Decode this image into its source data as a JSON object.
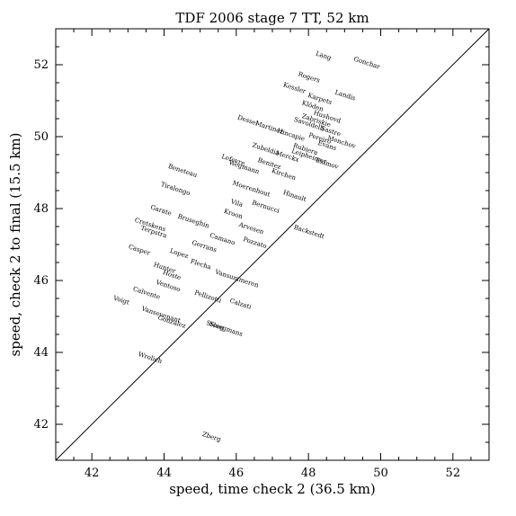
{
  "chart_data": {
    "type": "scatter",
    "title": "TDF 2006 stage 7 TT, 52 km",
    "xlabel": "speed, time check 2 (36.5 km)",
    "ylabel": "speed, check 2 to final (15.5 km)",
    "xlim": [
      41,
      53
    ],
    "ylim": [
      41,
      53
    ],
    "xticks": [
      42,
      44,
      46,
      48,
      50,
      52
    ],
    "yticks": [
      42,
      44,
      46,
      48,
      50,
      52
    ],
    "diagonal": "y = x",
    "points": [
      {
        "label": "Lang",
        "x": 48.4,
        "y": 52.2
      },
      {
        "label": "Gonchar",
        "x": 49.6,
        "y": 52.0
      },
      {
        "label": "Rogers",
        "x": 48.0,
        "y": 51.6
      },
      {
        "label": "Kessler",
        "x": 47.6,
        "y": 51.3
      },
      {
        "label": "Landis",
        "x": 49.0,
        "y": 51.1
      },
      {
        "label": "Karpets",
        "x": 48.3,
        "y": 51.0
      },
      {
        "label": "Klöden",
        "x": 48.1,
        "y": 50.8
      },
      {
        "label": "Hushovd",
        "x": 48.5,
        "y": 50.5
      },
      {
        "label": "Zabriskie",
        "x": 48.2,
        "y": 50.4
      },
      {
        "label": "Savoldelli",
        "x": 48.0,
        "y": 50.3
      },
      {
        "label": "Sastre",
        "x": 48.6,
        "y": 50.1
      },
      {
        "label": "Menchov",
        "x": 48.9,
        "y": 49.8
      },
      {
        "label": "Dessel",
        "x": 46.3,
        "y": 50.4
      },
      {
        "label": "Martinez",
        "x": 46.9,
        "y": 50.2
      },
      {
        "label": "Hincapie",
        "x": 47.5,
        "y": 50.0
      },
      {
        "label": "Pereiro",
        "x": 48.3,
        "y": 49.9
      },
      {
        "label": "Evans",
        "x": 48.5,
        "y": 49.7
      },
      {
        "label": "Rubiera",
        "x": 47.9,
        "y": 49.6
      },
      {
        "label": "Leipheimer",
        "x": 48.0,
        "y": 49.4
      },
      {
        "label": "Eximov",
        "x": 48.5,
        "y": 49.2
      },
      {
        "label": "Zubeldia",
        "x": 46.8,
        "y": 49.6
      },
      {
        "label": "Merckx",
        "x": 47.4,
        "y": 49.4
      },
      {
        "label": "Lefevre",
        "x": 45.9,
        "y": 49.3
      },
      {
        "label": "Wegmann",
        "x": 46.2,
        "y": 49.1
      },
      {
        "label": "Benitez",
        "x": 46.9,
        "y": 49.2
      },
      {
        "label": "Beneteau",
        "x": 44.5,
        "y": 49.0
      },
      {
        "label": "Kirchen",
        "x": 47.3,
        "y": 48.9
      },
      {
        "label": "Moerenhout",
        "x": 46.4,
        "y": 48.5
      },
      {
        "label": "Hinault",
        "x": 47.6,
        "y": 48.3
      },
      {
        "label": "Tiralongo",
        "x": 44.3,
        "y": 48.5
      },
      {
        "label": "Bernucci",
        "x": 46.8,
        "y": 48.0
      },
      {
        "label": "Vila",
        "x": 46.0,
        "y": 48.1
      },
      {
        "label": "Kroon",
        "x": 45.9,
        "y": 47.8
      },
      {
        "label": "Backstedt",
        "x": 48.0,
        "y": 47.3
      },
      {
        "label": "Garate",
        "x": 43.9,
        "y": 47.9
      },
      {
        "label": "Cretskens",
        "x": 43.6,
        "y": 47.5
      },
      {
        "label": "Bruseghin",
        "x": 44.8,
        "y": 47.6
      },
      {
        "label": "Terpstra",
        "x": 43.7,
        "y": 47.3
      },
      {
        "label": "Arvesen",
        "x": 46.4,
        "y": 47.4
      },
      {
        "label": "Casper",
        "x": 43.3,
        "y": 46.8
      },
      {
        "label": "Lopez",
        "x": 44.4,
        "y": 46.7
      },
      {
        "label": "Gerrans",
        "x": 45.1,
        "y": 46.9
      },
      {
        "label": "Camano",
        "x": 45.6,
        "y": 47.1
      },
      {
        "label": "Pozzato",
        "x": 46.5,
        "y": 47.0
      },
      {
        "label": "Hunter",
        "x": 44.0,
        "y": 46.3
      },
      {
        "label": "Hoste",
        "x": 44.2,
        "y": 46.1
      },
      {
        "label": "Flecha",
        "x": 45.0,
        "y": 46.4
      },
      {
        "label": "Vansummeren",
        "x": 46.0,
        "y": 46.0
      },
      {
        "label": "Ventoso",
        "x": 44.1,
        "y": 45.8
      },
      {
        "label": "Calvente",
        "x": 43.5,
        "y": 45.6
      },
      {
        "label": "Pellizotti",
        "x": 45.2,
        "y": 45.5
      },
      {
        "label": "Calzati",
        "x": 46.1,
        "y": 45.3
      },
      {
        "label": "Voigt",
        "x": 42.8,
        "y": 45.4
      },
      {
        "label": "Vansevenant",
        "x": 43.9,
        "y": 45.0
      },
      {
        "label": "Gonzalez",
        "x": 44.2,
        "y": 44.8
      },
      {
        "label": "Stoeg",
        "x": 45.4,
        "y": 44.7
      },
      {
        "label": "Sloegmans",
        "x": 45.7,
        "y": 44.6
      },
      {
        "label": "Wrolich",
        "x": 43.6,
        "y": 43.8
      },
      {
        "label": "Zberg",
        "x": 45.3,
        "y": 41.6
      }
    ]
  }
}
